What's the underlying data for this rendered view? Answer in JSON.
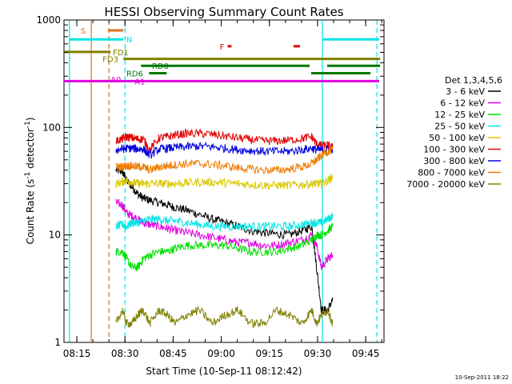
{
  "chart_data": {
    "type": "line",
    "title": "HESSI Observing Summary Count Rates",
    "xlabel": "Start Time (10-Sep-11 08:12:42)",
    "ylabel_main": "Count Rate (s",
    "ylabel_sup1": "-1",
    "ylabel_mid": " detector",
    "ylabel_sup2": "-1",
    "ylabel_end": ")",
    "x_unit": "minutes since 08:12:42",
    "xlim": [
      -1.7,
      98
    ],
    "ylim": [
      1,
      1000
    ],
    "yscale": "log",
    "x_ticks": [
      {
        "label": "08:15",
        "value": 2.3
      },
      {
        "label": "08:30",
        "value": 17.3
      },
      {
        "label": "08:45",
        "value": 32.3
      },
      {
        "label": "09:00",
        "value": 47.3
      },
      {
        "label": "09:15",
        "value": 62.3
      },
      {
        "label": "09:30",
        "value": 77.3
      },
      {
        "label": "09:45",
        "value": 92.3
      }
    ],
    "y_ticks": [
      {
        "label": "1",
        "value": 1
      },
      {
        "label": "10",
        "value": 10
      },
      {
        "label": "100",
        "value": 100
      },
      {
        "label": "1000",
        "value": 1000
      }
    ],
    "legend_title": "Det 1,3,4,5,6",
    "legend_position": "right",
    "vertical_lines": [
      {
        "x": 0.0,
        "color": "#00e5e5",
        "style": "solid"
      },
      {
        "x": 6.8,
        "color": "#e0701a",
        "style": "solid"
      },
      {
        "x": 12.3,
        "color": "#e0701a",
        "style": "dashed"
      },
      {
        "x": 17.3,
        "color": "#00e5e5",
        "style": "dashed"
      },
      {
        "x": 78.8,
        "color": "#00e5e5",
        "style": "solid"
      },
      {
        "x": 95.8,
        "color": "#00e5e5",
        "style": "dashed"
      }
    ],
    "flags": [
      {
        "label": "S",
        "color": "#e0701a",
        "y": 800,
        "label_x": 3.5,
        "segments": [
          [
            12.0,
            16.8
          ]
        ]
      },
      {
        "label": "N",
        "color": "#00e5e5",
        "y": 660,
        "label_x": 17.7,
        "segments": [
          [
            0.0,
            16.8
          ],
          [
            79.0,
            96.5
          ]
        ]
      },
      {
        "label": "F",
        "color": "#e00000",
        "y": 570,
        "label_x": 46.8,
        "segments": [
          [
            49.3,
            50.5
          ],
          [
            69.8,
            71.8
          ]
        ]
      },
      {
        "label": "FD1",
        "color": "#808000",
        "y": 505,
        "label_x": 13.5,
        "segments": [
          [
            -1.7,
            12.8
          ]
        ]
      },
      {
        "label": "FD3",
        "color": "#808000",
        "y": 435,
        "label_x": 10.3,
        "segments": [
          [
            16.8,
            96.8
          ]
        ]
      },
      {
        "label": "RD0",
        "color": "#007700",
        "y": 375,
        "label_x": 25.7,
        "segments": [
          [
            22.3,
            74.8
          ],
          [
            80.3,
            96.8
          ]
        ]
      },
      {
        "label": "RD6",
        "color": "#007700",
        "y": 320,
        "label_x": 17.7,
        "segments": [
          [
            24.8,
            30.3
          ],
          [
            75.3,
            93.8
          ]
        ]
      },
      {
        "label": "A0",
        "color": "#e000e0",
        "y": 282,
        "label_x": 12.8,
        "segments": []
      },
      {
        "label": "A1",
        "color": "#e000e0",
        "y": 270,
        "label_x": 20.3,
        "segments": [
          [
            -1.7,
            96.5
          ]
        ]
      }
    ],
    "series": [
      {
        "name": "3 - 6 keV",
        "color": "#000000",
        "x": [
          14.5,
          16.5,
          17.8,
          19.5,
          21.3,
          23.0,
          25.0,
          28.0,
          30.5,
          33.0,
          36.5,
          40.5,
          44.5,
          48.5,
          52.5,
          56.5,
          60.5,
          64.5,
          68.5,
          72.5,
          75.5,
          77.0,
          78.5,
          80.5,
          82.0
        ],
        "y": [
          40,
          39,
          32,
          28,
          24,
          22,
          21,
          20,
          19,
          18,
          17,
          15.5,
          14,
          13,
          12,
          11,
          10.5,
          10.2,
          10,
          11,
          12,
          5,
          2,
          2,
          2.5
        ]
      },
      {
        "name": "6 - 12 keV",
        "color": "#e000e0",
        "x": [
          14.5,
          16.5,
          17.8,
          19.5,
          21.3,
          23.0,
          25.0,
          28.0,
          30.5,
          33.0,
          36.5,
          40.5,
          44.5,
          48.5,
          52.5,
          56.5,
          60.5,
          64.5,
          68.5,
          72.5,
          75.5,
          77.0,
          78.5,
          80.5,
          82.0
        ],
        "y": [
          20,
          19,
          16,
          15,
          14,
          13,
          12.5,
          12,
          11.5,
          11,
          10.5,
          10,
          9.5,
          9,
          8.5,
          8.5,
          8,
          8,
          8.5,
          9,
          10,
          8,
          5,
          6,
          6.5
        ]
      },
      {
        "name": "12 - 25 keV",
        "color": "#00e000",
        "x": [
          14.5,
          16.5,
          17.8,
          19.5,
          21.3,
          23.0,
          25.0,
          28.0,
          30.5,
          33.0,
          36.5,
          40.5,
          44.5,
          48.5,
          52.5,
          56.5,
          60.5,
          64.5,
          68.5,
          72.5,
          75.5,
          77.0,
          78.5,
          80.5,
          82.0
        ],
        "y": [
          7,
          7,
          6,
          5,
          5,
          6,
          6.5,
          7,
          7,
          7.5,
          8,
          8,
          8,
          8,
          7.5,
          7,
          7,
          7,
          7.5,
          8,
          9,
          10,
          10,
          11,
          12
        ]
      },
      {
        "name": "25 - 50 keV",
        "color": "#00e5e5",
        "x": [
          14.5,
          16.5,
          17.8,
          19.5,
          21.3,
          23.0,
          25.0,
          28.0,
          30.5,
          33.0,
          36.5,
          40.5,
          44.5,
          48.5,
          52.5,
          56.5,
          60.5,
          64.5,
          68.5,
          72.5,
          75.5,
          77.0,
          78.5,
          80.5,
          82.0
        ],
        "y": [
          12,
          12.5,
          12,
          13,
          13,
          13.5,
          14,
          14,
          13.5,
          13.5,
          13,
          12.5,
          12,
          12,
          12,
          12,
          12,
          12,
          12,
          12.5,
          13,
          13,
          13,
          14,
          15
        ]
      },
      {
        "name": "50 - 100 keV",
        "color": "#d8c800",
        "x": [
          14.5,
          16.5,
          17.8,
          19.5,
          21.3,
          23.0,
          25.0,
          28.0,
          30.5,
          33.0,
          36.5,
          40.5,
          44.5,
          48.5,
          52.5,
          56.5,
          60.5,
          64.5,
          68.5,
          72.5,
          75.5,
          77.0,
          78.5,
          80.5,
          82.0
        ],
        "y": [
          30,
          31,
          32,
          31,
          30,
          30,
          30,
          30,
          30,
          30,
          30.5,
          31,
          31,
          30.5,
          30,
          29.5,
          29,
          29,
          29,
          29.5,
          30,
          30,
          30,
          32,
          35
        ]
      },
      {
        "name": "100 - 300 keV",
        "color": "#e00000",
        "x": [
          14.5,
          16.5,
          17.8,
          19.5,
          21.3,
          23.0,
          25.0,
          28.0,
          30.5,
          33.0,
          36.5,
          40.5,
          44.5,
          48.5,
          52.5,
          56.5,
          60.5,
          64.5,
          68.5,
          72.5,
          75.5,
          77.0,
          78.5,
          80.5,
          82.0
        ],
        "y": [
          75,
          78,
          82,
          80,
          78,
          78,
          62,
          80,
          82,
          85,
          88,
          88,
          86,
          83,
          80,
          77,
          75,
          75,
          76,
          79,
          82,
          70,
          68,
          68,
          65
        ]
      },
      {
        "name": "300 - 800 keV",
        "color": "#0000e0",
        "x": [
          14.5,
          16.5,
          17.8,
          19.5,
          21.3,
          23.0,
          25.0,
          28.0,
          30.5,
          33.0,
          36.5,
          40.5,
          44.5,
          48.5,
          52.5,
          56.5,
          60.5,
          64.5,
          68.5,
          72.5,
          75.5,
          77.0,
          78.5,
          80.5,
          82.0
        ],
        "y": [
          62,
          63,
          64,
          64,
          63,
          63,
          55,
          63,
          64,
          65,
          66,
          67,
          66,
          64,
          62,
          61,
          60,
          60,
          60,
          62,
          64,
          62,
          62,
          63,
          62
        ]
      },
      {
        "name": "800 - 7000 keV",
        "color": "#f07c00",
        "x": [
          14.5,
          16.5,
          17.8,
          19.5,
          21.3,
          23.0,
          25.0,
          28.0,
          30.5,
          33.0,
          36.5,
          40.5,
          44.5,
          48.5,
          52.5,
          56.5,
          60.5,
          64.5,
          68.5,
          72.5,
          75.5,
          77.0,
          78.5,
          80.5,
          82.0
        ],
        "y": [
          43,
          43,
          44,
          44,
          43,
          43,
          40,
          43,
          44,
          45,
          46,
          46,
          45,
          44,
          42,
          41,
          40,
          40,
          41,
          43,
          46,
          50,
          55,
          60,
          62
        ]
      },
      {
        "name": "7000 - 20000 keV",
        "color": "#808000",
        "x": [
          14.5,
          16.5,
          17.8,
          19.5,
          21.3,
          23.0,
          25.0,
          28.0,
          30.5,
          33.0,
          36.5,
          40.5,
          44.5,
          48.5,
          52.5,
          56.5,
          60.5,
          64.5,
          68.5,
          72.5,
          75.5,
          77.0,
          78.5,
          80.5,
          82.0
        ],
        "y": [
          1.5,
          2,
          1.5,
          1.5,
          1.8,
          2,
          1.5,
          2,
          1.8,
          1.5,
          1.8,
          2,
          1.5,
          1.8,
          2,
          1.5,
          1.5,
          2,
          1.8,
          1.5,
          2,
          1.5,
          1.8,
          2,
          1.5
        ]
      }
    ],
    "footer_date": "10-Sep-2011 18:22"
  }
}
